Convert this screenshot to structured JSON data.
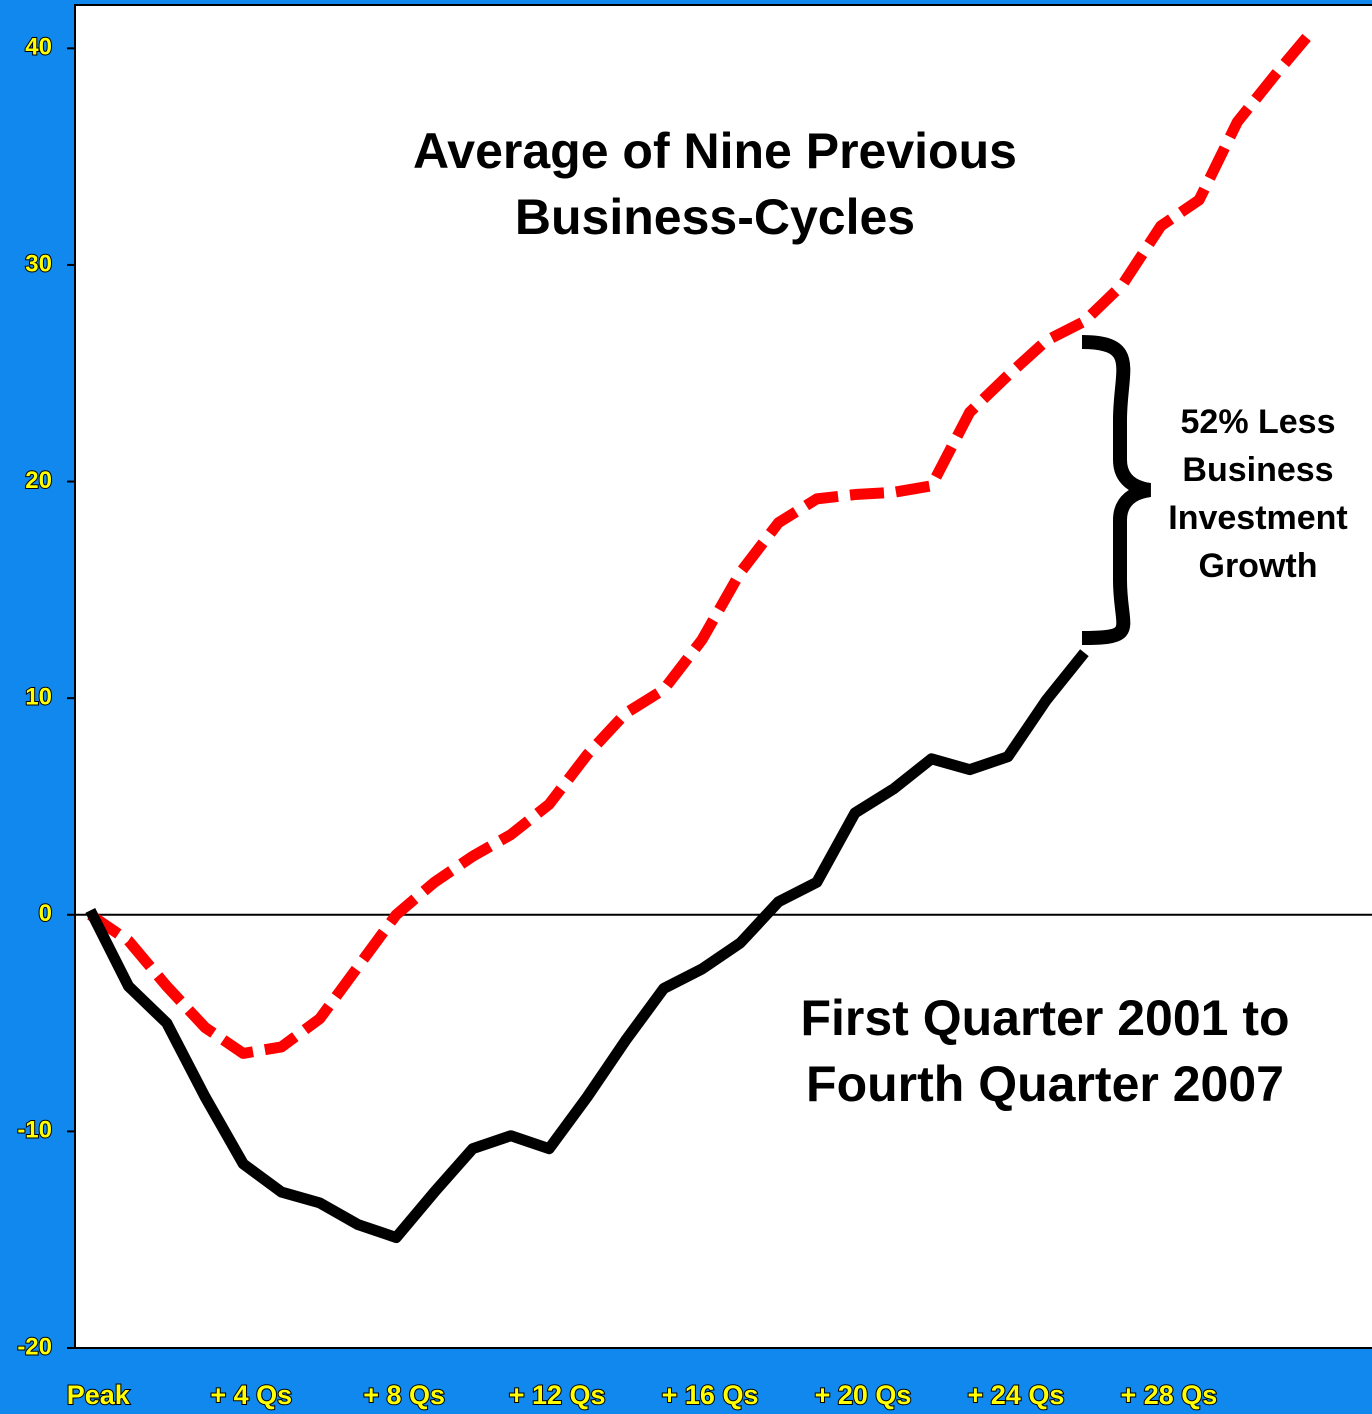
{
  "chart_data": {
    "type": "line",
    "xlim": [
      -0.4,
      33.6
    ],
    "xticks": [
      {
        "value": 0,
        "label": "Peak"
      },
      {
        "value": 4,
        "label": "+ 4 Qs"
      },
      {
        "value": 8,
        "label": "+ 8 Qs"
      },
      {
        "value": 12,
        "label": "+ 12 Qs"
      },
      {
        "value": 16,
        "label": "+ 16 Qs"
      },
      {
        "value": 20,
        "label": "+ 20 Qs"
      },
      {
        "value": 24,
        "label": "+ 24 Qs"
      },
      {
        "value": 28,
        "label": "+ 28 Qs"
      }
    ],
    "ylim": [
      -20,
      42
    ],
    "yticks": [
      -20,
      -10,
      0,
      10,
      20,
      30,
      40
    ],
    "x": [
      0,
      1,
      2,
      3,
      4,
      5,
      6,
      7,
      8,
      9,
      10,
      11,
      12,
      13,
      14,
      15,
      16,
      17,
      18,
      19,
      20,
      21,
      22,
      23,
      24,
      25,
      26,
      27,
      28,
      29,
      30,
      31,
      32
    ],
    "series": [
      {
        "name": "Average of Nine Previous Business-Cycles",
        "color": "#ff0000",
        "style": "dashed",
        "values": [
          0,
          -1.2,
          -3.3,
          -5.2,
          -6.4,
          -6.1,
          -4.8,
          -2.4,
          0,
          1.5,
          2.7,
          3.7,
          5.1,
          7.4,
          9.3,
          10.4,
          12.7,
          15.8,
          18.1,
          19.2,
          19.4,
          19.5,
          19.8,
          23.2,
          24.9,
          26.5,
          27.4,
          29.1,
          31.8,
          33.0,
          36.6,
          38.8,
          40.9
        ]
      },
      {
        "name": "First Quarter 2001 to Fourth Quarter 2007",
        "color": "#000000",
        "style": "solid",
        "values": [
          0.2,
          -3.3,
          -5.0,
          -8.4,
          -11.5,
          -12.8,
          -13.3,
          -14.3,
          -14.9,
          -12.8,
          -10.8,
          -10.2,
          -10.8,
          -8.4,
          -5.8,
          -3.4,
          -2.5,
          -1.3,
          0.6,
          1.5,
          4.7,
          5.8,
          7.2,
          6.7,
          7.3,
          9.9,
          12.1,
          null,
          null,
          null,
          null,
          null,
          null
        ]
      }
    ],
    "annotations": [
      "52% Less Business Investment Growth"
    ]
  }
}
